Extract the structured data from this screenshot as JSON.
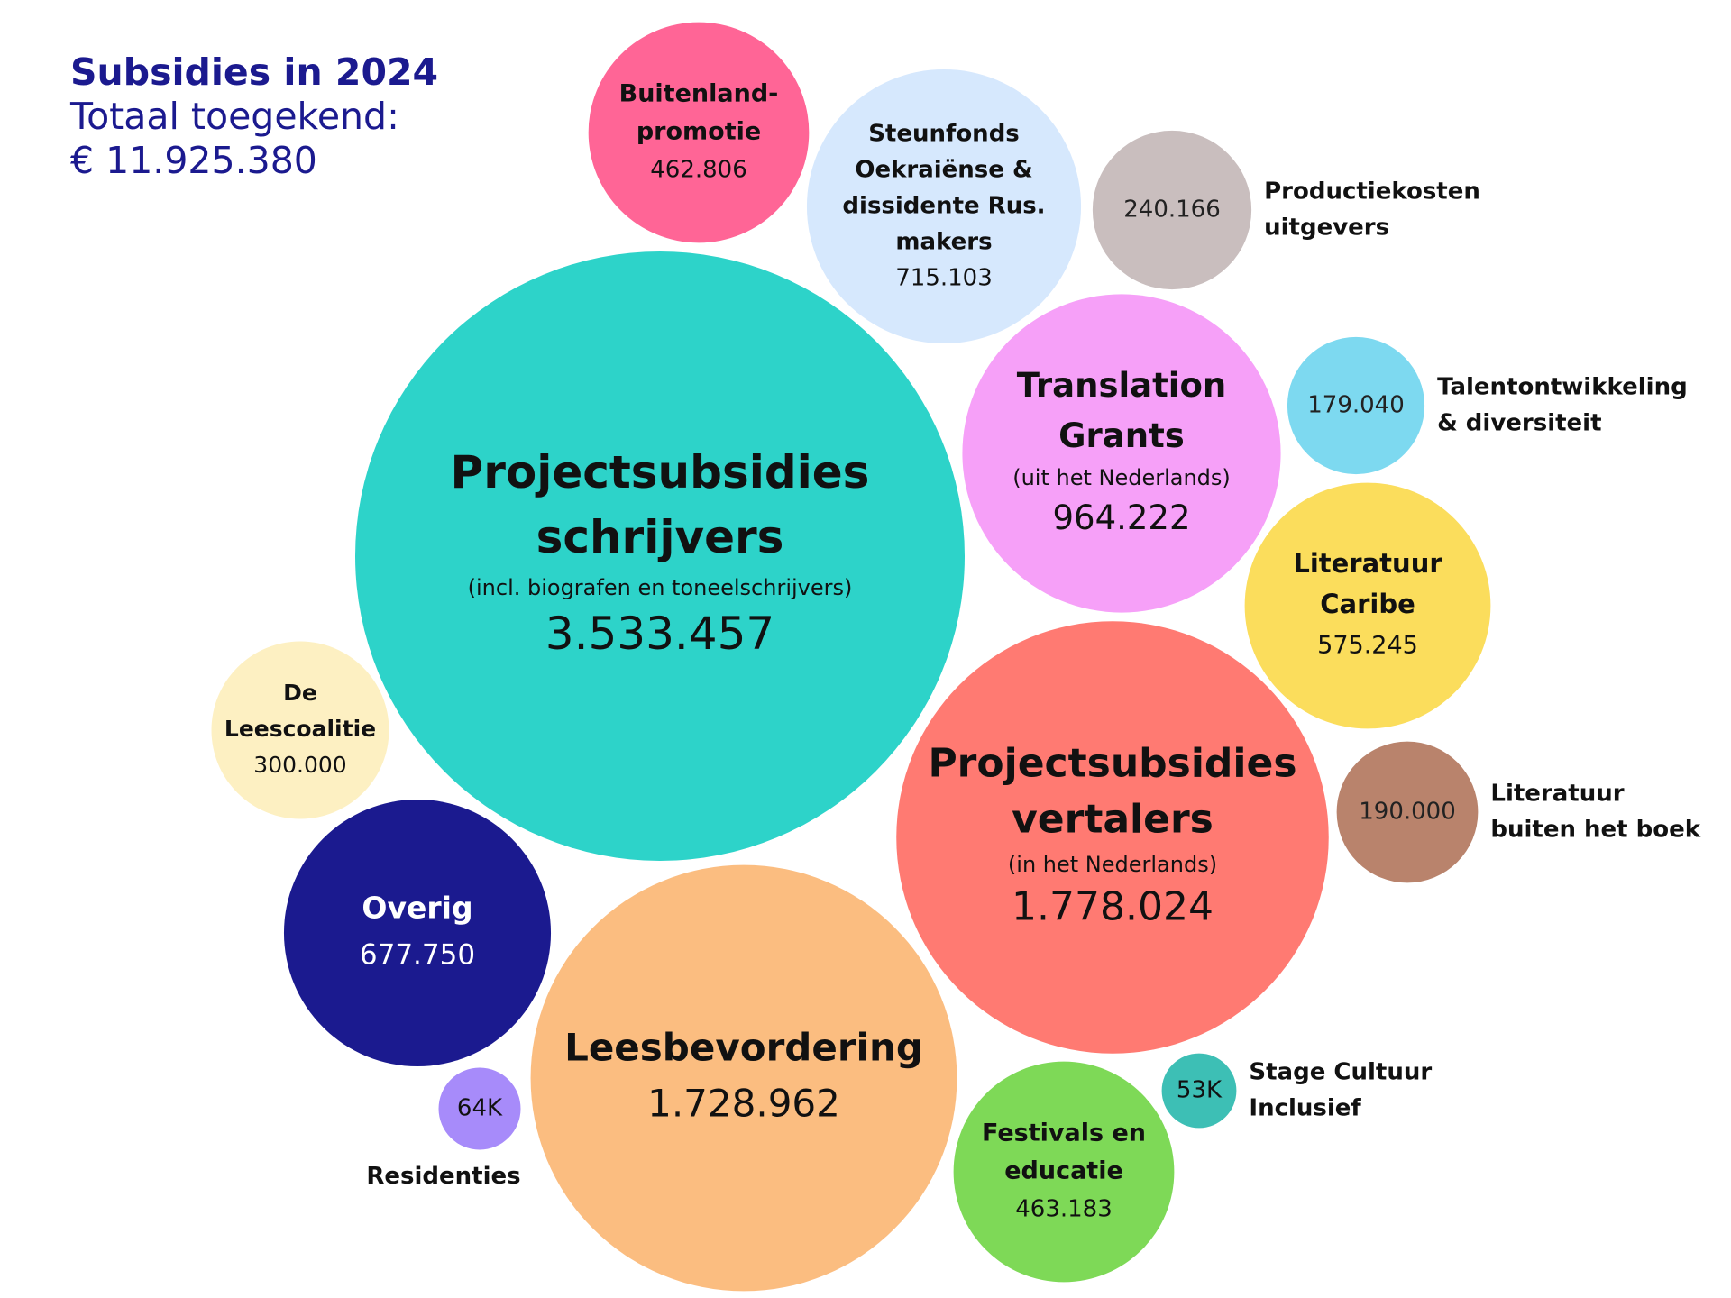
{
  "chart_data": {
    "type": "bubble",
    "title": "Subsidies in 2024",
    "subtitle_line1": "Totaal toegekend:",
    "subtitle_line2": "€ 11.925.380",
    "bubbles": [
      {
        "label": "Projectsubsidies schrijvers",
        "label_lines": [
          "Projectsubsidies",
          "schrijvers"
        ],
        "note": "(incl. biografen en toneelschrijvers)",
        "display": "3.533.457",
        "value": 3533457,
        "color": "#2dd3c9",
        "text_color": "#111111",
        "label_position": "inside"
      },
      {
        "label": "Projectsubsidies vertalers",
        "label_lines": [
          "Projectsubsidies",
          "vertalers"
        ],
        "note": "(in het Nederlands)",
        "display": "1.778.024",
        "value": 1778024,
        "color": "#ff7a72",
        "text_color": "#111111",
        "label_position": "inside"
      },
      {
        "label": "Leesbevordering",
        "label_lines": [
          "Leesbevordering"
        ],
        "note": "",
        "display": "1.728.962",
        "value": 1728962,
        "color": "#fbbd80",
        "text_color": "#111111",
        "label_position": "inside"
      },
      {
        "label": "Translation Grants",
        "label_lines": [
          "Translation",
          "Grants"
        ],
        "note": "(uit het Nederlands)",
        "display": "964.222",
        "value": 964222,
        "color": "#f6a0f8",
        "text_color": "#111111",
        "label_position": "inside"
      },
      {
        "label": "Steunfonds Oekraiënse & dissidente Rus. makers",
        "label_lines": [
          "Steunfonds",
          "Oekraiënse &",
          "dissidente Rus.",
          "makers"
        ],
        "note": "",
        "display": "715.103",
        "value": 715103,
        "color": "#d6e8fd",
        "text_color": "#111111",
        "label_position": "inside"
      },
      {
        "label": "Overig",
        "label_lines": [
          "Overig"
        ],
        "note": "",
        "display": "677.750",
        "value": 677750,
        "color": "#1b1a8f",
        "text_color": "#ffffff",
        "label_position": "inside"
      },
      {
        "label": "Literatuur Caribe",
        "label_lines": [
          "Literatuur",
          "Caribe"
        ],
        "note": "",
        "display": "575.245",
        "value": 575245,
        "color": "#fbdd5c",
        "text_color": "#111111",
        "label_position": "inside"
      },
      {
        "label": "Festivals en educatie",
        "label_lines": [
          "Festivals en",
          "educatie"
        ],
        "note": "",
        "display": "463.183",
        "value": 463183,
        "color": "#7ed957",
        "text_color": "#111111",
        "label_position": "inside"
      },
      {
        "label": "Buitenland-promotie",
        "label_lines": [
          "Buitenland-",
          "promotie"
        ],
        "note": "",
        "display": "462.806",
        "value": 462806,
        "color": "#ff6596",
        "text_color": "#111111",
        "label_position": "inside"
      },
      {
        "label": "De Leescoalitie",
        "label_lines": [
          "De",
          "Leescoalitie"
        ],
        "note": "",
        "display": "300.000",
        "value": 300000,
        "color": "#fdf0c2",
        "text_color": "#111111",
        "label_position": "inside"
      },
      {
        "label": "Productiekosten uitgevers",
        "label_lines": [
          "Productiekosten",
          "uitgevers"
        ],
        "note": "",
        "display": "240.166",
        "value": 240166,
        "color": "#c9bebe",
        "text_color": "#222222",
        "label_position": "right"
      },
      {
        "label": "Literatuur buiten het boek",
        "label_lines": [
          "Literatuur",
          "buiten het boek"
        ],
        "note": "",
        "display": "190.000",
        "value": 190000,
        "color": "#b9836c",
        "text_color": "#222222",
        "label_position": "right"
      },
      {
        "label": "Talentontwikkeling & diversiteit",
        "label_lines": [
          "Talentontwikkeling",
          "& diversiteit"
        ],
        "note": "",
        "display": "179.040",
        "value": 179040,
        "color": "#7dd9f0",
        "text_color": "#222222",
        "label_position": "right"
      },
      {
        "label": "Residenties",
        "label_lines": [
          "Residenties"
        ],
        "note": "",
        "display": "64K",
        "value": 64000,
        "color": "#a78bfa",
        "text_color": "#111111",
        "label_position": "below"
      },
      {
        "label": "Stage Cultuur Inclusief",
        "label_lines": [
          "Stage Cultuur",
          "Inclusief"
        ],
        "note": "",
        "display": "53K",
        "value": 53000,
        "color": "#3dbfb5",
        "text_color": "#111111",
        "label_position": "right"
      }
    ]
  }
}
